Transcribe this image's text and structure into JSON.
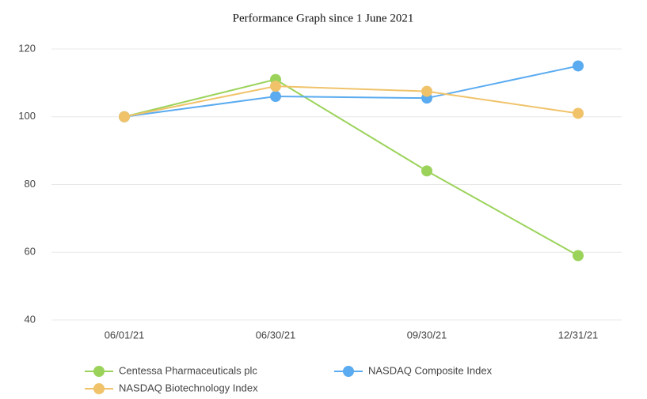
{
  "chart_data": {
    "type": "line",
    "title": "Performance Graph since 1 June 2021",
    "categories": [
      "06/01/21",
      "06/30/21",
      "09/30/21",
      "12/31/21"
    ],
    "series": [
      {
        "name": "Centessa Pharmaceuticals plc",
        "color": "#9bd35a",
        "values": [
          100,
          111,
          84,
          59
        ]
      },
      {
        "name": "NASDAQ Composite Index",
        "color": "#5aabf0",
        "values": [
          100,
          106,
          105.5,
          115
        ]
      },
      {
        "name": "NASDAQ Biotechnology Index",
        "color": "#f0c36a",
        "values": [
          100,
          109,
          107.5,
          101
        ]
      }
    ],
    "ylim": [
      40,
      120
    ],
    "yticks": [
      40,
      60,
      80,
      100,
      120
    ],
    "grid": true,
    "legend": "bottom"
  }
}
